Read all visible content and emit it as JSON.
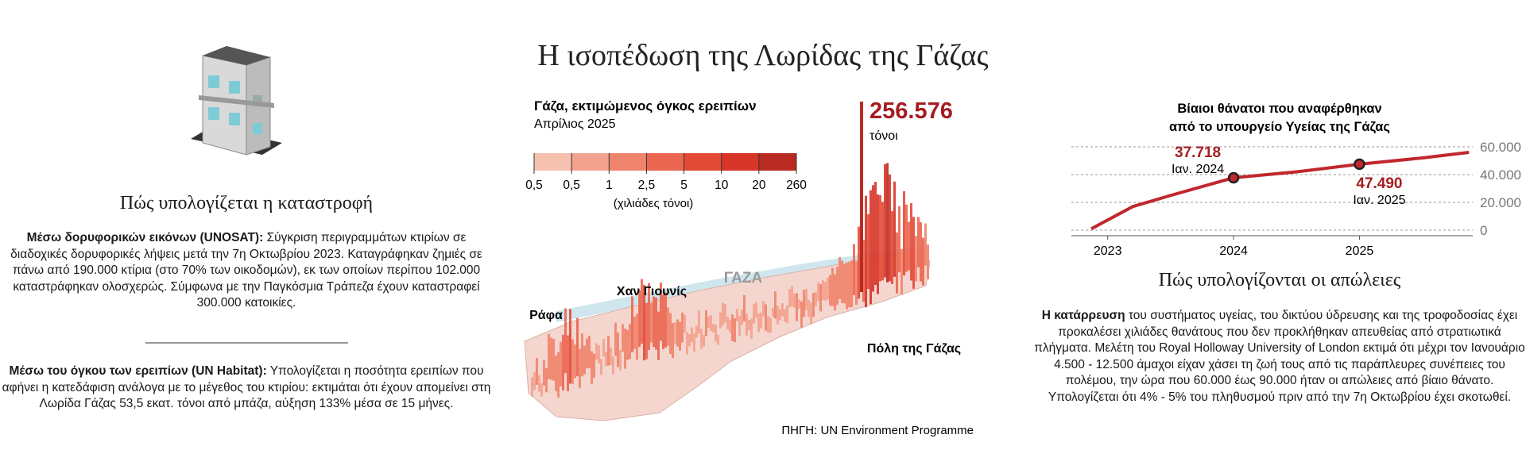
{
  "title": "Η ισοπέδωση της Λωρίδας της Γάζας",
  "left": {
    "heading": "Πώς υπολογίζεται η καταστροφή",
    "p1": {
      "lead": "Μέσω δορυφορικών εικόνων (UNOSAT):",
      "body": "Σύγκριση περιγραμμάτων κτιρίων σε διαδοχικές δορυφορικές λήψεις μετά την 7η Οκτωβρίου 2023. Καταγράφηκαν ζημιές σε πάνω από 190.000 κτίρια (στο 70% των οικοδομών), εκ των οποίων περίπου 102.000 καταστράφηκαν ολοσχερώς. Σύμφωνα με την Παγκόσμια Τράπεζα έχουν καταστραφεί 300.000 κατοικίες."
    },
    "p2": {
      "lead": "Μέσω του όγκου των ερειπίων (UN Habitat):",
      "body": "Υπολογίζεται η ποσότητα ερειπίων που αφήνει η κατεδάφιση ανάλογα με το μέγεθος του κτιρίου: εκτιμάται ότι έχουν απομείνει στη Λωρίδα Γάζας 53,5 εκατ. τόνοι από μπάζα, αύξηση 133% μέσα σε 15 μήνες."
    }
  },
  "map": {
    "title": "Γάζα, εκτιμώμενος όγκος ερειπίων",
    "subtitle": "Απρίλιος 2025",
    "legend": {
      "colors": [
        "#f7c1b0",
        "#f3a28d",
        "#ef846c",
        "#ea6650",
        "#e34a36",
        "#d63527",
        "#b92b22"
      ],
      "labels": [
        "0,5",
        "0,5",
        "1",
        "2,5",
        "5",
        "10",
        "20",
        "260"
      ],
      "unit": "(χιλιάδες τόνοι)"
    },
    "peak": {
      "value": 256576,
      "label": "256.576",
      "unit": "τόνοι"
    },
    "places": {
      "gaza": "ΓΑΖΑ",
      "khan_younis": "Χαν Γιουνίς",
      "rafah": "Ράφα",
      "gaza_city": "Πόλη της Γάζας"
    },
    "source": "ΠΗΓΗ: UN Environment Programme"
  },
  "chart_data": {
    "type": "line",
    "title": [
      "Βίαιοι θάνατοι που αναφέρθηκαν",
      "από το υπουργείο Υγείας της Γάζας"
    ],
    "x": [
      2022.87,
      2023.2,
      2023.5,
      2024.0,
      2024.5,
      2025.0,
      2025.5,
      2025.87
    ],
    "xlim": [
      2022.8,
      2025.9
    ],
    "xticks": [
      2023,
      2024,
      2025
    ],
    "ylim": [
      0,
      60000
    ],
    "yticks": [
      0,
      {
        "value": 20000,
        "label": "20.000"
      },
      {
        "value": 40000,
        "label": "40.000"
      },
      {
        "value": 60000,
        "label": "60.000"
      }
    ],
    "grid": true,
    "series": [
      {
        "color": "#c1272d",
        "values": [
          1000,
          17000,
          25000,
          37718,
          42000,
          47490,
          52000,
          56000
        ],
        "value_labels": [
          null,
          null,
          null,
          "37.718",
          null,
          "47.490",
          null,
          null
        ],
        "point_notes": [
          null,
          null,
          null,
          "Ιαν. 2024",
          null,
          "Ιαν. 2025",
          null,
          null
        ]
      }
    ]
  },
  "right": {
    "heading": "Πώς υπολογίζονται οι απώλειες",
    "p": {
      "lead": "Η κατάρρευση",
      "body": "του συστήματος υγείας, του δικτύου ύδρευσης και της τροφοδοσίας έχει προκαλέσει χιλιάδες θανάτους που δεν προκλήθηκαν απευθείας από στρατιωτικά πλήγματα. Μελέτη του Royal Holloway University of London εκτιμά ότι μέχρι τον Ιανουάριο 4.500 - 12.500 άμαχοι είχαν χάσει τη ζωή τους από τις παράπλευρες συνέπειες του πολέμου, την ώρα που 60.000 έως 90.000 ήταν οι απώλειες από βίαιο θάνατο. Υπολογίζεται ότι 4% - 5% του πληθυσμού πριν από την 7η Οκτωβρίου έχει σκοτωθεί."
    }
  }
}
